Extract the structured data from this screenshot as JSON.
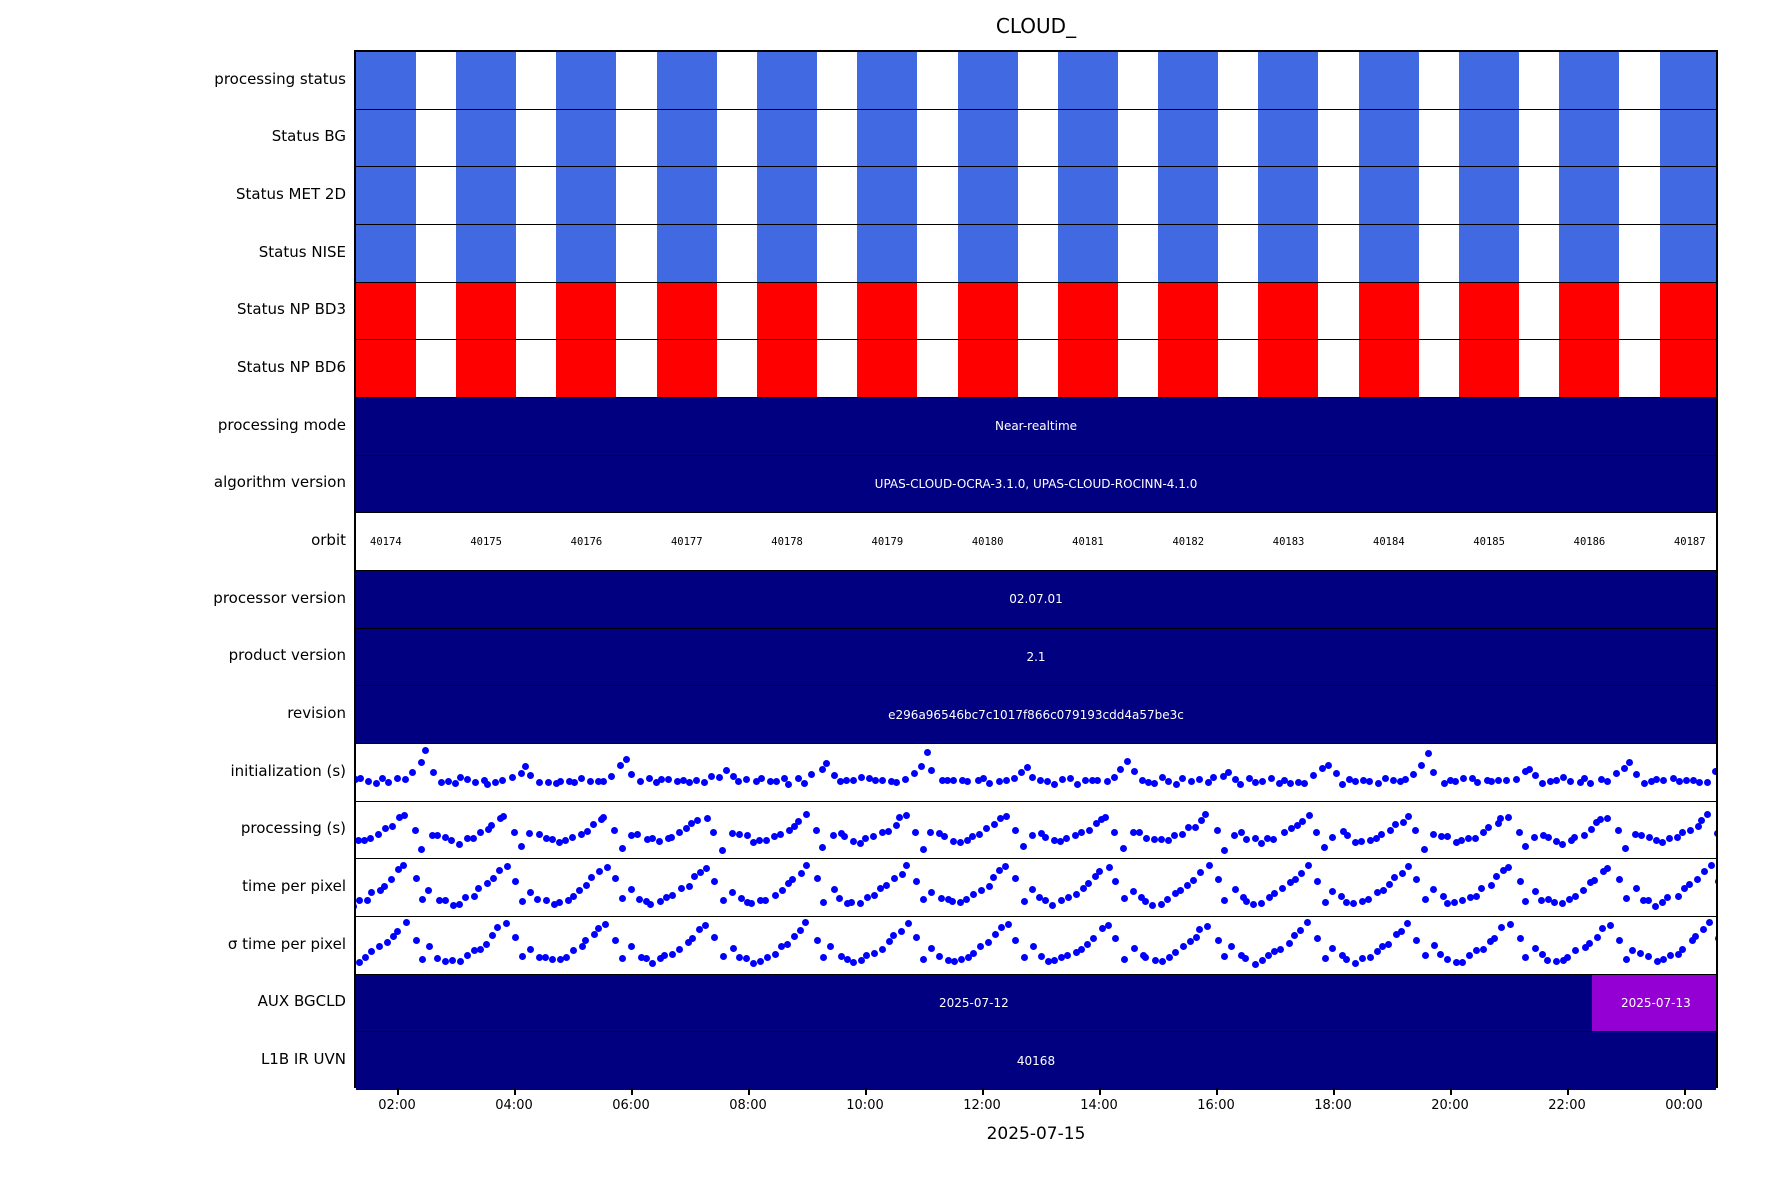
{
  "title": "CLOUD_",
  "xlabel": "2025-07-15",
  "colors": {
    "status_ok_blue": "#4169E1",
    "status_fail_red": "#FF0000",
    "navy": "#000080",
    "purple": "#9400D3",
    "scatter_blue": "#0000FF",
    "text_on_dark": "#FFFFFF"
  },
  "x_axis": {
    "tick_labels": [
      "02:00",
      "04:00",
      "06:00",
      "08:00",
      "10:00",
      "12:00",
      "14:00",
      "16:00",
      "18:00",
      "20:00",
      "22:00",
      "00:00"
    ]
  },
  "chart_data": {
    "type": "heatmap",
    "description": "Satellite product processing-status timeline; 18 horizontal lanes over a 24h time axis split into 14 orbits",
    "orbits": [
      "40174",
      "40175",
      "40176",
      "40177",
      "40178",
      "40179",
      "40180",
      "40181",
      "40182",
      "40183",
      "40184",
      "40185",
      "40186",
      "40187"
    ],
    "rows": [
      {
        "label": "processing status",
        "type": "bars",
        "color_key": "status_ok_blue"
      },
      {
        "label": "Status BG",
        "type": "bars",
        "color_key": "status_ok_blue"
      },
      {
        "label": "Status MET 2D",
        "type": "bars",
        "color_key": "status_ok_blue"
      },
      {
        "label": "Status NISE",
        "type": "bars",
        "color_key": "status_ok_blue"
      },
      {
        "label": "Status NP BD3",
        "type": "bars",
        "color_key": "status_fail_red"
      },
      {
        "label": "Status NP BD6",
        "type": "bars",
        "color_key": "status_fail_red"
      },
      {
        "label": "processing mode",
        "type": "text",
        "value": "Near-realtime"
      },
      {
        "label": "algorithm version",
        "type": "text",
        "value": "UPAS-CLOUD-OCRA-3.1.0, UPAS-CLOUD-ROCINN-4.1.0"
      },
      {
        "label": "orbit",
        "type": "orbits"
      },
      {
        "label": "processor version",
        "type": "text",
        "value": "02.07.01"
      },
      {
        "label": "product version",
        "type": "text",
        "value": "2.1"
      },
      {
        "label": "revision",
        "type": "text",
        "value": "e296a96546bc7c1017f866c079193cdd4a57be3c"
      },
      {
        "label": "initialization (s)",
        "type": "scatter",
        "template": "init"
      },
      {
        "label": "processing (s)",
        "type": "scatter",
        "template": "proc"
      },
      {
        "label": "time per pixel",
        "type": "scatter",
        "template": "tpp"
      },
      {
        "label": "σ time per pixel",
        "type": "scatter",
        "template": "tpp"
      },
      {
        "label": "AUX BGCLD",
        "type": "split",
        "segments": [
          {
            "value": "2025-07-12",
            "color_key": "navy",
            "from_frac": 0.0,
            "to_frac": 0.906
          },
          {
            "value": "2025-07-13",
            "color_key": "purple",
            "from_frac": 0.906,
            "to_frac": 1.0
          }
        ]
      },
      {
        "label": "L1B IR UVN",
        "type": "text",
        "value": "40168"
      }
    ],
    "scatter_templates": {
      "init": [
        [
          0.04,
          0.3
        ],
        [
          0.11,
          0.34
        ],
        [
          0.18,
          0.31
        ],
        [
          0.25,
          0.36
        ],
        [
          0.32,
          0.33
        ],
        [
          0.39,
          0.3
        ],
        [
          0.46,
          0.34
        ],
        [
          0.53,
          0.3
        ],
        [
          0.6,
          0.33
        ],
        [
          0.68,
          0.31
        ],
        [
          0.76,
          0.5
        ],
        [
          0.84,
          0.72
        ],
        [
          0.9,
          0.95
        ],
        [
          0.96,
          0.55
        ]
      ],
      "proc": [
        [
          0.03,
          0.42
        ],
        [
          0.09,
          0.35
        ],
        [
          0.16,
          0.28
        ],
        [
          0.23,
          0.26
        ],
        [
          0.3,
          0.3
        ],
        [
          0.37,
          0.36
        ],
        [
          0.44,
          0.44
        ],
        [
          0.51,
          0.52
        ],
        [
          0.57,
          0.62
        ],
        [
          0.63,
          0.72
        ],
        [
          0.69,
          0.8
        ],
        [
          0.78,
          0.48
        ],
        [
          0.86,
          0.12
        ],
        [
          0.95,
          0.4
        ]
      ],
      "tpp": [
        [
          0.03,
          0.28
        ],
        [
          0.09,
          0.22
        ],
        [
          0.16,
          0.16
        ],
        [
          0.23,
          0.2
        ],
        [
          0.3,
          0.27
        ],
        [
          0.37,
          0.36
        ],
        [
          0.44,
          0.46
        ],
        [
          0.51,
          0.57
        ],
        [
          0.57,
          0.7
        ],
        [
          0.63,
          0.84
        ],
        [
          0.7,
          0.95
        ],
        [
          0.79,
          0.65
        ],
        [
          0.87,
          0.25
        ],
        [
          0.95,
          0.45
        ]
      ]
    }
  }
}
